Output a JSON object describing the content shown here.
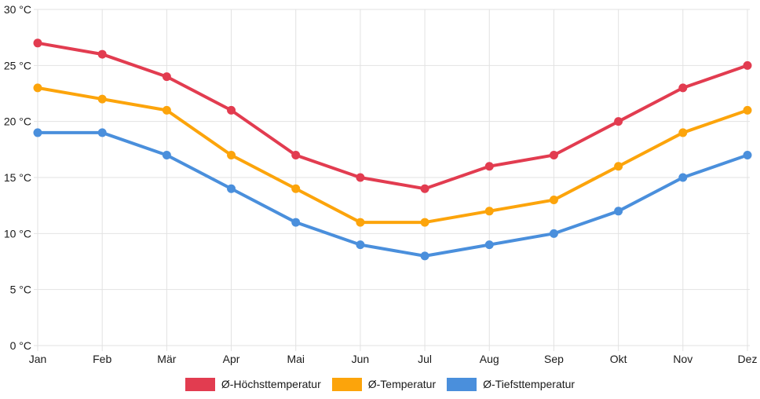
{
  "chart_data": {
    "type": "line",
    "categories": [
      "Jan",
      "Feb",
      "Mär",
      "Apr",
      "Mai",
      "Jun",
      "Jul",
      "Aug",
      "Sep",
      "Okt",
      "Nov",
      "Dez"
    ],
    "series": [
      {
        "name": "Ø-Höchsttemperatur",
        "color": "#E23C50",
        "values": [
          27,
          26,
          24,
          21,
          17,
          15,
          14,
          16,
          17,
          20,
          23,
          25
        ]
      },
      {
        "name": "Ø-Temperatur",
        "color": "#FCA40B",
        "values": [
          23,
          22,
          21,
          17,
          14,
          11,
          11,
          12,
          13,
          16,
          19,
          21
        ]
      },
      {
        "name": "Ø-Tiefsttemperatur",
        "color": "#4A8FDC",
        "values": [
          19,
          19,
          17,
          14,
          11,
          9,
          8,
          9,
          10,
          12,
          15,
          17
        ]
      }
    ],
    "y_ticks": [
      "0 °C",
      "5 °C",
      "10 °C",
      "15 °C",
      "20 °C",
      "25 °C",
      "30 °C"
    ],
    "ylim": [
      0,
      30
    ],
    "y_step": 5,
    "unit": "°C",
    "title": "",
    "xlabel": "",
    "ylabel": "",
    "grid": true,
    "legend_position": "bottom"
  },
  "colors": {
    "grid": "#E2E2E2",
    "text": "#1A1A1A",
    "background": "#FFFFFF"
  }
}
